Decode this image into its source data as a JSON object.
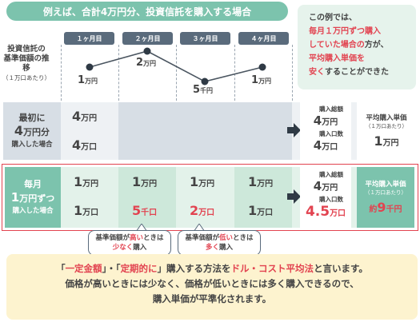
{
  "title": "例えば、合計4万円分、投資信託を購入する場合",
  "note": {
    "line1": "この例では、",
    "line2": "毎月１万円ずつ購入",
    "line3": "していた場合の",
    "line3b": "方が、",
    "line4": "平均購入単価を",
    "line5": "安く",
    "line5b": "することができた"
  },
  "price_label": {
    "line1": "投資信託の",
    "line2": "基準価額の推移",
    "line3": "（１万口あたり）"
  },
  "months": [
    "１ヶ月目",
    "２ヶ月目",
    "３ヶ月目",
    "４ヶ月目"
  ],
  "prices": [
    {
      "num": "1",
      "unit": "万円"
    },
    {
      "num": "2",
      "unit": "万円"
    },
    {
      "num": "5",
      "unit": "千円"
    },
    {
      "num": "1",
      "unit": "万円"
    }
  ],
  "price_values_yen": [
    10000,
    20000,
    5000,
    10000
  ],
  "lump": {
    "label1": "最初に",
    "label2a": "4",
    "label2b": "万円分",
    "label3": "購入した場合",
    "amount": {
      "num": "4",
      "unit": "万円"
    },
    "units": {
      "num": "4",
      "unit": "万口"
    },
    "total_label": "購入総額",
    "total": {
      "num": "4",
      "unit": "万円"
    },
    "count_label": "購入口数",
    "count": {
      "num": "4",
      "unit": "万口"
    },
    "avg_label": "平均購入単価",
    "avg_sub": "（１万口あたり）",
    "avg": {
      "num": "1",
      "unit": "万円"
    }
  },
  "dca": {
    "label1": "毎月",
    "label2a": "1",
    "label2b": "万円ずつ",
    "label3": "購入した場合",
    "amounts": [
      {
        "num": "1",
        "unit": "万円"
      },
      {
        "num": "1",
        "unit": "万円"
      },
      {
        "num": "1",
        "unit": "万円"
      },
      {
        "num": "1",
        "unit": "万円"
      }
    ],
    "units": [
      {
        "num": "1",
        "unit": "万口"
      },
      {
        "num": "5",
        "unit": "千口"
      },
      {
        "num": "2",
        "unit": "万口"
      },
      {
        "num": "1",
        "unit": "万口"
      }
    ],
    "total_label": "購入総額",
    "total": {
      "num": "4",
      "unit": "万円"
    },
    "count_label": "購入口数",
    "count": {
      "num": "4.5",
      "unit": "万口"
    },
    "avg_label": "平均購入単価",
    "avg_sub": "（１万口あたり）",
    "avg_prefix": "約",
    "avg": {
      "num": "9",
      "unit": "千円"
    }
  },
  "bubbles": [
    {
      "a": "基準価額が",
      "b": "高い",
      "c": "ときは",
      "d": "少なく",
      "e": "購入"
    },
    {
      "a": "基準価額が",
      "b": "低い",
      "c": "ときは",
      "d": "多く",
      "e": "購入"
    }
  ],
  "bottom": {
    "q1": "「",
    "r1": "一定金額",
    "q2": "」・「",
    "r2": "定期的に",
    "q3": "」購入する方法を",
    "r3": "ドル・コスト平均法",
    "q4": "と言います。",
    "line2": "価格が高いときには少なく、価格が低いときには多く購入できるので、",
    "line3": "購入単価が平準化されます。"
  },
  "colors": {
    "teal": "#7cc3ad",
    "lump_bg": "#d7dee5",
    "dca_bg": "#e3f2ea",
    "dca_label": "#7cc3ad",
    "red": "#e24350",
    "highlight": "#fdf3cf"
  }
}
